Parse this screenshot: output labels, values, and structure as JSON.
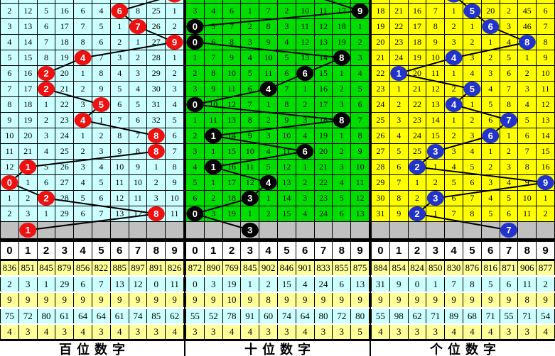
{
  "colors": {
    "grid_line": "#000000",
    "trend_line": "#000000",
    "gray_row": "#c0c0c0",
    "header_bg": "#ffffff",
    "stat_row_yellow": "#ffff99",
    "stat_row_cyan": "#ccffff",
    "ball_text": "#ffffff"
  },
  "header_digits": [
    "0",
    "1",
    "2",
    "3",
    "4",
    "5",
    "6",
    "7",
    "8",
    "9"
  ],
  "chart_data": [
    {
      "type": "table",
      "title": "百位数字",
      "cell_bg": "#ccffff",
      "ball_color": "#ee1111",
      "columns": [
        "0",
        "1",
        "2",
        "3",
        "4",
        "5",
        "6",
        "7",
        "8",
        "9"
      ],
      "rows": [
        [
          "2",
          "12",
          "5",
          "16",
          "6",
          "4",
          "6",
          "8",
          "25",
          "1"
        ],
        [
          "3",
          "13",
          "6",
          "17",
          "7",
          "5",
          "1",
          "7",
          "26",
          "2"
        ],
        [
          "4",
          "14",
          "7",
          "18",
          "8",
          "6",
          "2",
          "1",
          "27",
          "9"
        ],
        [
          "5",
          "15",
          "8",
          "19",
          "4",
          "7",
          "3",
          "2",
          "28",
          "1"
        ],
        [
          "6",
          "16",
          "2",
          "20",
          "1",
          "8",
          "4",
          "3",
          "29",
          "2"
        ],
        [
          "7",
          "17",
          "2",
          "21",
          "2",
          "9",
          "5",
          "4",
          "30",
          "3"
        ],
        [
          "8",
          "18",
          "1",
          "22",
          "3",
          "5",
          "6",
          "5",
          "31",
          "4"
        ],
        [
          "9",
          "19",
          "2",
          "23",
          "4",
          "1",
          "7",
          "6",
          "32",
          "5"
        ],
        [
          "10",
          "20",
          "3",
          "24",
          "1",
          "2",
          "8",
          "7",
          "8",
          "6"
        ],
        [
          "11",
          "21",
          "4",
          "25",
          "2",
          "3",
          "9",
          "8",
          "8",
          "7"
        ],
        [
          "12",
          "1",
          "5",
          "26",
          "3",
          "4",
          "10",
          "9",
          "1",
          "8"
        ],
        [
          "0",
          "1",
          "6",
          "27",
          "4",
          "5",
          "11",
          "10",
          "2",
          "9"
        ],
        [
          "1",
          "2",
          "2",
          "28",
          "5",
          "6",
          "12",
          "11",
          "3",
          "10"
        ],
        [
          "2",
          "3",
          "1",
          "29",
          "6",
          "7",
          "13",
          "12",
          "8",
          "11"
        ]
      ],
      "ball_cols": [
        6,
        7,
        9,
        4,
        2,
        2,
        5,
        4,
        8,
        8,
        1,
        0,
        2,
        8
      ],
      "drawn_digits": [
        6,
        7,
        9,
        4,
        2,
        2,
        5,
        4,
        8,
        8,
        1,
        0,
        2,
        8
      ],
      "gray_ball_col": 1,
      "entry": {
        "style": "ball",
        "col": 9
      },
      "stat_rows": [
        [
          "836",
          "851",
          "845",
          "879",
          "856",
          "822",
          "885",
          "897",
          "891",
          "826"
        ],
        [
          "2",
          "3",
          "1",
          "29",
          "6",
          "7",
          "13",
          "12",
          "0",
          "11"
        ],
        [
          "9",
          "9",
          "9",
          "9",
          "9",
          "9",
          "9",
          "9",
          "9",
          "9"
        ],
        [
          "75",
          "72",
          "80",
          "61",
          "64",
          "64",
          "61",
          "74",
          "85",
          "62"
        ],
        [
          "4",
          "3",
          "4",
          "3",
          "4",
          "3",
          "4",
          "3",
          "3",
          "4"
        ]
      ]
    },
    {
      "type": "table",
      "title": "十位数字",
      "cell_bg": "#00dd00",
      "ball_color": "#000000",
      "columns": [
        "0",
        "1",
        "2",
        "3",
        "4",
        "5",
        "6",
        "7",
        "8",
        "9"
      ],
      "rows": [
        [
          "3",
          "4",
          "6",
          "1",
          "7",
          "2",
          "10",
          "11",
          "17",
          "9"
        ],
        [
          "0",
          "5",
          "7",
          "2",
          "8",
          "3",
          "11",
          "12",
          "18",
          "1"
        ],
        [
          "0",
          "6",
          "8",
          "3",
          "9",
          "4",
          "12",
          "13",
          "19",
          "2"
        ],
        [
          "1",
          "7",
          "9",
          "4",
          "10",
          "5",
          "13",
          "14",
          "8",
          "3"
        ],
        [
          "2",
          "8",
          "10",
          "5",
          "11",
          "6",
          "6",
          "15",
          "1",
          "4"
        ],
        [
          "3",
          "9",
          "11",
          "6",
          "4",
          "7",
          "1",
          "16",
          "2",
          "5"
        ],
        [
          "0",
          "10",
          "12",
          "7",
          "1",
          "8",
          "2",
          "17",
          "3",
          "6"
        ],
        [
          "1",
          "11",
          "13",
          "8",
          "2",
          "9",
          "3",
          "18",
          "8",
          "7"
        ],
        [
          "2",
          "1",
          "14",
          "9",
          "3",
          "10",
          "4",
          "19",
          "1",
          "8"
        ],
        [
          "3",
          "1",
          "15",
          "10",
          "4",
          "11",
          "6",
          "20",
          "2",
          "9"
        ],
        [
          "4",
          "1",
          "16",
          "11",
          "5",
          "12",
          "1",
          "21",
          "3",
          "10"
        ],
        [
          "5",
          "1",
          "17",
          "12",
          "4",
          "13",
          "2",
          "22",
          "4",
          "11"
        ],
        [
          "6",
          "2",
          "18",
          "3",
          "1",
          "14",
          "3",
          "23",
          "5",
          "12"
        ],
        [
          "0",
          "3",
          "19",
          "1",
          "2",
          "15",
          "4",
          "24",
          "6",
          "13"
        ]
      ],
      "ball_cols": [
        9,
        0,
        0,
        8,
        6,
        4,
        0,
        8,
        1,
        6,
        1,
        4,
        3,
        0
      ],
      "drawn_digits": [
        9,
        0,
        0,
        8,
        6,
        4,
        0,
        8,
        1,
        6,
        1,
        4,
        3,
        0
      ],
      "gray_ball_col": 3,
      "entry": {
        "style": "line",
        "col": 6
      },
      "stat_rows": [
        [
          "872",
          "890",
          "769",
          "845",
          "902",
          "846",
          "901",
          "833",
          "855",
          "875"
        ],
        [
          "0",
          "3",
          "19",
          "1",
          "2",
          "15",
          "4",
          "24",
          "6",
          "13"
        ],
        [
          "9",
          "9",
          "10",
          "9",
          "8",
          "9",
          "9",
          "9",
          "9",
          "9"
        ],
        [
          "55",
          "52",
          "78",
          "91",
          "60",
          "74",
          "64",
          "80",
          "72",
          "80"
        ],
        [
          "3",
          "3",
          "4",
          "4",
          "3",
          "3",
          "4",
          "3",
          "3",
          "5"
        ]
      ]
    },
    {
      "type": "table",
      "title": "个位数字",
      "cell_bg": "#ffff00",
      "ball_color": "#2233cc",
      "columns": [
        "0",
        "1",
        "2",
        "3",
        "4",
        "5",
        "6",
        "7",
        "8",
        "9"
      ],
      "rows": [
        [
          "18",
          "21",
          "16",
          "7",
          "1",
          "5",
          "20",
          "2",
          "45",
          "6"
        ],
        [
          "19",
          "22",
          "17",
          "8",
          "2",
          "1",
          "6",
          "3",
          "46",
          "7"
        ],
        [
          "20",
          "23",
          "18",
          "9",
          "3",
          "2",
          "1",
          "4",
          "8",
          "8"
        ],
        [
          "21",
          "24",
          "19",
          "10",
          "4",
          "3",
          "2",
          "5",
          "1",
          "9"
        ],
        [
          "22",
          "1",
          "20",
          "11",
          "1",
          "4",
          "3",
          "6",
          "2",
          "10"
        ],
        [
          "23",
          "1",
          "21",
          "12",
          "2",
          "5",
          "4",
          "7",
          "3",
          "11"
        ],
        [
          "24",
          "2",
          "22",
          "13",
          "4",
          "1",
          "5",
          "8",
          "4",
          "12"
        ],
        [
          "25",
          "3",
          "23",
          "14",
          "1",
          "2",
          "6",
          "7",
          "5",
          "13"
        ],
        [
          "26",
          "4",
          "24",
          "15",
          "2",
          "3",
          "6",
          "1",
          "6",
          "14"
        ],
        [
          "27",
          "5",
          "25",
          "3",
          "3",
          "4",
          "1",
          "2",
          "7",
          "15"
        ],
        [
          "28",
          "6",
          "2",
          "1",
          "4",
          "5",
          "2",
          "3",
          "8",
          "16"
        ],
        [
          "29",
          "7",
          "1",
          "2",
          "5",
          "6",
          "3",
          "4",
          "9",
          "9"
        ],
        [
          "30",
          "8",
          "2",
          "3",
          "6",
          "7",
          "4",
          "5",
          "10",
          "1"
        ],
        [
          "31",
          "9",
          "2",
          "1",
          "7",
          "8",
          "5",
          "6",
          "11",
          "2"
        ]
      ],
      "ball_cols": [
        5,
        6,
        8,
        4,
        1,
        5,
        4,
        7,
        6,
        3,
        2,
        9,
        3,
        2
      ],
      "drawn_digits": [
        5,
        6,
        8,
        4,
        1,
        5,
        4,
        7,
        6,
        3,
        2,
        9,
        3,
        2
      ],
      "gray_ball_col": 7,
      "entry": {
        "style": "ball",
        "col": 4
      },
      "stat_rows": [
        [
          "884",
          "854",
          "824",
          "850",
          "830",
          "876",
          "816",
          "871",
          "906",
          "877"
        ],
        [
          "31",
          "9",
          "0",
          "1",
          "7",
          "8",
          "5",
          "6",
          "11",
          "2"
        ],
        [
          "9",
          "9",
          "9",
          "9",
          "9",
          "9",
          "9",
          "9",
          "8",
          "9"
        ],
        [
          "55",
          "98",
          "62",
          "71",
          "89",
          "68",
          "71",
          "55",
          "71",
          "54"
        ],
        [
          "4",
          "3",
          "3",
          "3",
          "4",
          "4",
          "4",
          "3",
          "3",
          "4"
        ]
      ]
    }
  ]
}
